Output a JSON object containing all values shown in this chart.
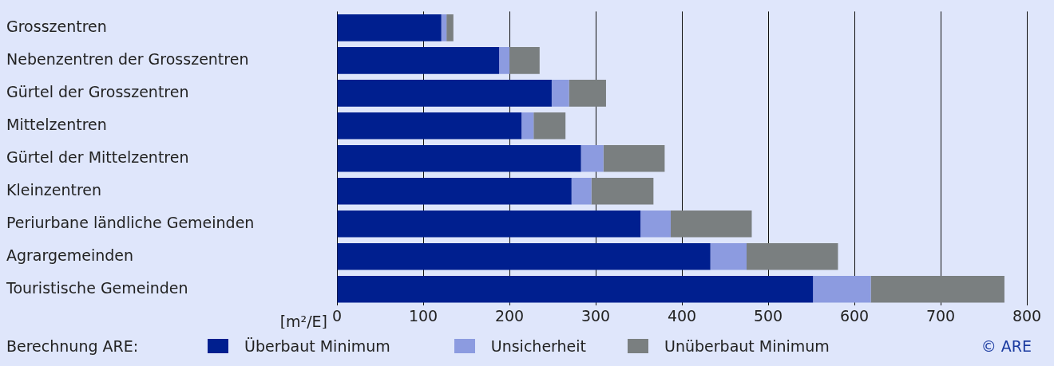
{
  "chart_data": {
    "type": "bar",
    "orientation": "horizontal",
    "stacked": true,
    "categories": [
      "Grosszentren",
      "Nebenzentren der Grosszentren",
      "Gürtel der Grosszentren",
      "Mittelzentren",
      "Gürtel der Mittelzentren",
      "Kleinzentren",
      "Periurbane ländliche Gemeinden",
      "Agrargemeinden",
      "Touristische Gemeinden"
    ],
    "series": [
      {
        "name": "Überbaut Minimum",
        "color": "#001f8f",
        "values": [
          121,
          188,
          249,
          214,
          283,
          272,
          352,
          433,
          552
        ]
      },
      {
        "name": "Unsicherheit",
        "color": "#8c9be0",
        "values": [
          6,
          12,
          20,
          14,
          26,
          23,
          35,
          42,
          67
        ]
      },
      {
        "name": "Unüberbaut Minimum",
        "color": "#7a7f80",
        "values": [
          8,
          35,
          43,
          37,
          71,
          72,
          94,
          106,
          155
        ]
      }
    ],
    "xlabel": "[m²/E]",
    "xlim": [
      0,
      800
    ],
    "xticks": [
      0,
      100,
      200,
      300,
      400,
      500,
      600,
      700,
      800
    ],
    "grid": "x",
    "legend": "bottom",
    "legend_title": "Berechnung ARE:",
    "annotations": [
      "© ARE"
    ]
  }
}
